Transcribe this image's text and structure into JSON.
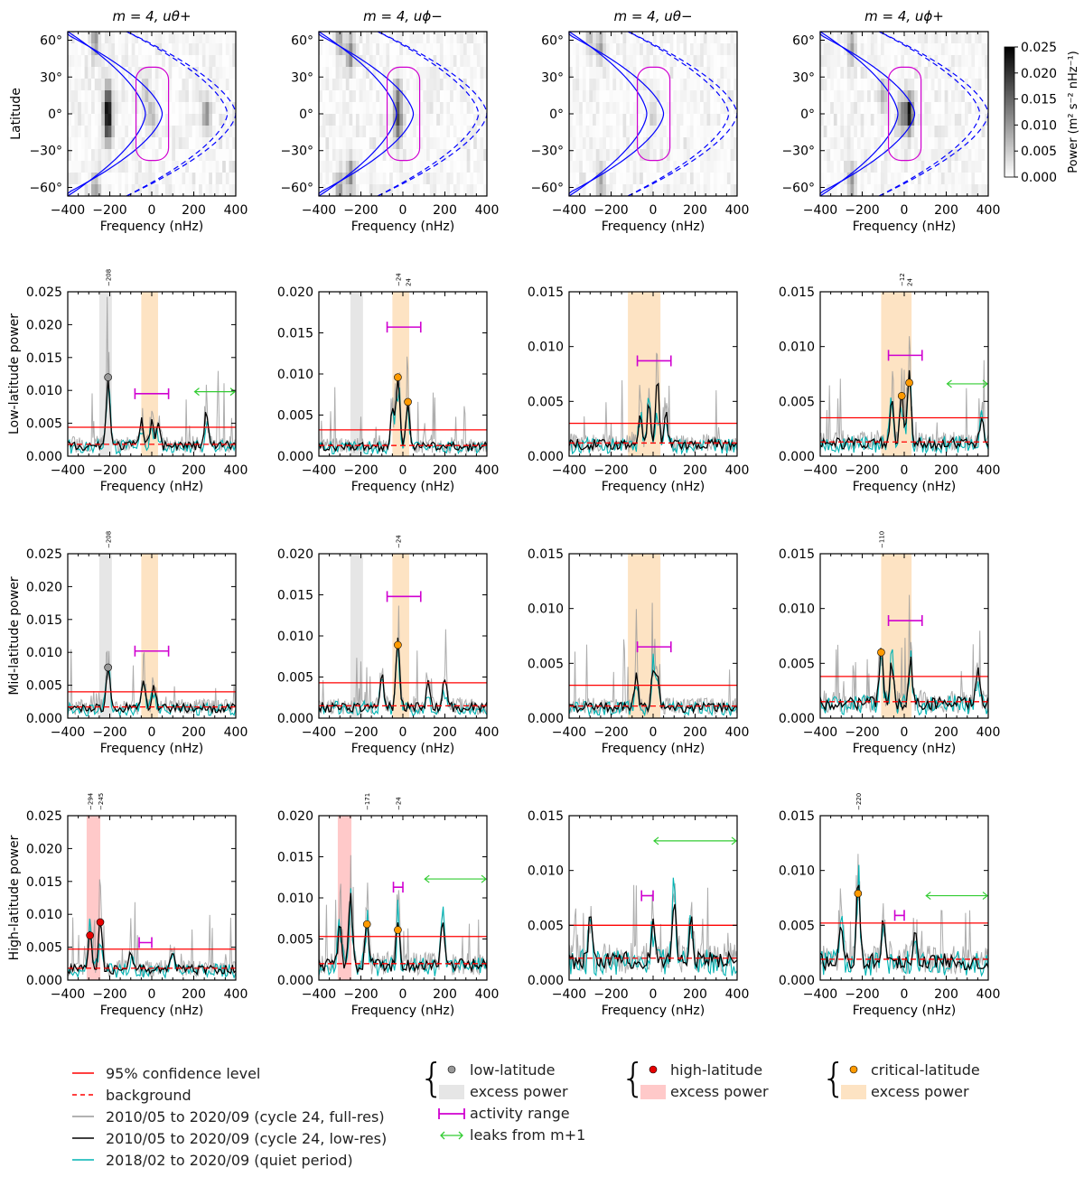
{
  "chart_data": {
    "type": "line",
    "x_label": "Frequency (nHz)",
    "xlim": [
      -400,
      400
    ],
    "x_ticks": [
      "−400",
      "−200",
      "0",
      "200",
      "400"
    ],
    "row_labels": [
      "Latitude",
      "Low-latitude power",
      "Mid-latitude power",
      "High-latitude power"
    ],
    "titles": [
      "m = 4, uθ+",
      "m = 4, uϕ−",
      "m = 4, uθ−",
      "m = 4, uϕ+"
    ],
    "lat_ticks": [
      "60°",
      "30°",
      "0°",
      "−30°",
      "−60°"
    ],
    "colorbar": {
      "label": "Power (m² s⁻² nHz⁻¹)",
      "ticks": [
        "0.025",
        "0.020",
        "0.015",
        "0.010",
        "0.005",
        "0.000"
      ],
      "range": [
        0,
        0.025
      ]
    },
    "heatmaps": [
      {
        "hot": [
          [
            -208,
            0,
            0.018
          ],
          [
            -208,
            15,
            0.01
          ],
          [
            -208,
            -15,
            0.01
          ],
          [
            260,
            0,
            0.01
          ],
          [
            -270,
            60,
            0.009
          ],
          [
            -270,
            -62,
            0.009
          ],
          [
            0,
            0,
            0.006
          ],
          [
            -30,
            20,
            0.005
          ]
        ]
      },
      {
        "hot": [
          [
            -24,
            0,
            0.01
          ],
          [
            -24,
            15,
            0.008
          ],
          [
            -24,
            -15,
            0.008
          ],
          [
            -250,
            50,
            0.01
          ],
          [
            -250,
            -50,
            0.01
          ],
          [
            -300,
            -60,
            0.008
          ],
          [
            -300,
            60,
            0.008
          ]
        ]
      },
      {
        "hot": [
          [
            -250,
            55,
            0.008
          ],
          [
            -250,
            -55,
            0.008
          ],
          [
            -300,
            62,
            0.006
          ],
          [
            0,
            0,
            0.004
          ]
        ]
      },
      {
        "hot": [
          [
            24,
            0,
            0.022
          ],
          [
            -12,
            0,
            0.01
          ],
          [
            -250,
            55,
            0.009
          ],
          [
            -250,
            -55,
            0.009
          ],
          [
            -100,
            15,
            0.006
          ]
        ]
      }
    ],
    "panels": [
      {
        "row": "low",
        "ymax": 0.025,
        "yticks": [
          "0.000",
          "0.005",
          "0.010",
          "0.015",
          "0.020",
          "0.025"
        ],
        "conf": 0.0044,
        "bg": 0.0018,
        "bands": [
          {
            "kind": "low",
            "range": [
              -250,
              -190
            ]
          },
          {
            "kind": "critical",
            "range": [
              -50,
              30
            ]
          }
        ],
        "markers": [
          {
            "kind": "low",
            "f": -208,
            "p": 0.012
          }
        ],
        "peak_labels": [
          "−208"
        ],
        "peak_freqs": [
          -208
        ],
        "activity": {
          "range": [
            -80,
            80
          ],
          "p": 0.0095
        },
        "leak": {
          "range": [
            200,
            400
          ],
          "p": 0.0098
        },
        "peaks": [
          [
            -208,
            0.011
          ],
          [
            260,
            0.0055
          ],
          [
            0,
            0.004
          ],
          [
            -50,
            0.004
          ],
          [
            30,
            0.004
          ]
        ]
      },
      {
        "row": "low",
        "ymax": 0.02,
        "yticks": [
          "0.000",
          "0.005",
          "0.010",
          "0.015",
          "0.020"
        ],
        "conf": 0.0032,
        "bg": 0.0013,
        "bands": [
          {
            "kind": "low",
            "range": [
              -250,
              -190
            ]
          },
          {
            "kind": "critical",
            "range": [
              -50,
              30
            ]
          }
        ],
        "markers": [
          {
            "kind": "critical",
            "f": -24,
            "p": 0.0096
          },
          {
            "kind": "critical",
            "f": 24,
            "p": 0.0066
          }
        ],
        "peak_labels": [
          "−24",
          "24"
        ],
        "peak_freqs": [
          -24,
          24
        ],
        "activity": {
          "range": [
            -75,
            85
          ],
          "p": 0.0157
        },
        "leak": null,
        "peaks": [
          [
            -24,
            0.009
          ],
          [
            24,
            0.006
          ],
          [
            -50,
            0.005
          ]
        ]
      },
      {
        "row": "low",
        "ymax": 0.015,
        "yticks": [
          "0.000",
          "0.005",
          "0.010",
          "0.015"
        ],
        "conf": 0.003,
        "bg": 0.0012,
        "bands": [
          {
            "kind": "critical",
            "range": [
              -120,
              35
            ]
          }
        ],
        "markers": [],
        "peak_labels": [],
        "peak_freqs": [],
        "activity": {
          "range": [
            -75,
            85
          ],
          "p": 0.0087
        },
        "leak": null,
        "peaks": [
          [
            20,
            0.006
          ],
          [
            -20,
            0.004
          ],
          [
            -60,
            0.003
          ],
          [
            60,
            0.003
          ]
        ]
      },
      {
        "row": "low",
        "ymax": 0.015,
        "yticks": [
          "0.000",
          "0.005",
          "0.010",
          "0.015"
        ],
        "conf": 0.0035,
        "bg": 0.0013,
        "bands": [
          {
            "kind": "critical",
            "range": [
              -110,
              35
            ]
          }
        ],
        "markers": [
          {
            "kind": "critical",
            "f": -12,
            "p": 0.0055
          },
          {
            "kind": "critical",
            "f": 24,
            "p": 0.0067
          }
        ],
        "peak_labels": [
          "−12",
          "24"
        ],
        "peak_freqs": [
          -12,
          24
        ],
        "activity": {
          "range": [
            -75,
            85
          ],
          "p": 0.0092
        },
        "leak": {
          "range": [
            200,
            400
          ],
          "p": 0.0066
        },
        "peaks": [
          [
            24,
            0.0065
          ],
          [
            -12,
            0.005
          ],
          [
            -60,
            0.004
          ],
          [
            370,
            0.003
          ]
        ]
      },
      {
        "row": "mid",
        "ymax": 0.025,
        "yticks": [
          "0.000",
          "0.005",
          "0.010",
          "0.015",
          "0.020",
          "0.025"
        ],
        "conf": 0.004,
        "bg": 0.0017,
        "bands": [
          {
            "kind": "low",
            "range": [
              -250,
              -190
            ]
          },
          {
            "kind": "critical",
            "range": [
              -50,
              30
            ]
          }
        ],
        "markers": [
          {
            "kind": "low",
            "f": -208,
            "p": 0.0077
          }
        ],
        "peak_labels": [
          "−208"
        ],
        "peak_freqs": [
          -208
        ],
        "activity": {
          "range": [
            -80,
            80
          ],
          "p": 0.0102
        },
        "leak": null,
        "peaks": [
          [
            -208,
            0.007
          ],
          [
            -40,
            0.005
          ],
          [
            10,
            0.004
          ]
        ]
      },
      {
        "row": "mid",
        "ymax": 0.02,
        "yticks": [
          "0.000",
          "0.005",
          "0.010",
          "0.015",
          "0.020"
        ],
        "conf": 0.0043,
        "bg": 0.0015,
        "bands": [
          {
            "kind": "low",
            "range": [
              -250,
              -190
            ]
          },
          {
            "kind": "critical",
            "range": [
              -50,
              30
            ]
          }
        ],
        "markers": [
          {
            "kind": "critical",
            "f": -24,
            "p": 0.0089
          }
        ],
        "peak_labels": [
          "−24"
        ],
        "peak_freqs": [
          -24
        ],
        "activity": {
          "range": [
            -75,
            85
          ],
          "p": 0.0148
        },
        "leak": null,
        "peaks": [
          [
            -24,
            0.0085
          ],
          [
            -100,
            0.004
          ],
          [
            200,
            0.004
          ],
          [
            120,
            0.003
          ]
        ]
      },
      {
        "row": "mid",
        "ymax": 0.015,
        "yticks": [
          "0.000",
          "0.005",
          "0.010",
          "0.015"
        ],
        "conf": 0.003,
        "bg": 0.0011,
        "bands": [
          {
            "kind": "critical",
            "range": [
              -120,
              35
            ]
          }
        ],
        "markers": [],
        "peak_labels": [],
        "peak_freqs": [],
        "activity": {
          "range": [
            -75,
            85
          ],
          "p": 0.0065
        },
        "leak": null,
        "peaks": [
          [
            -80,
            0.003
          ],
          [
            0,
            0.0035
          ],
          [
            20,
            0.003
          ]
        ]
      },
      {
        "row": "mid",
        "ymax": 0.015,
        "yticks": [
          "0.000",
          "0.005",
          "0.010",
          "0.015"
        ],
        "conf": 0.0038,
        "bg": 0.0015,
        "bands": [
          {
            "kind": "critical",
            "range": [
              -110,
              35
            ]
          }
        ],
        "markers": [
          {
            "kind": "critical",
            "f": -110,
            "p": 0.006
          }
        ],
        "peak_labels": [
          "−110"
        ],
        "peak_freqs": [
          -110
        ],
        "activity": {
          "range": [
            -75,
            85
          ],
          "p": 0.0089
        },
        "leak": null,
        "peaks": [
          [
            -110,
            0.0058
          ],
          [
            -60,
            0.004
          ],
          [
            30,
            0.004
          ],
          [
            350,
            0.003
          ]
        ]
      },
      {
        "row": "high",
        "ymax": 0.025,
        "yticks": [
          "0.000",
          "0.005",
          "0.010",
          "0.015",
          "0.020",
          "0.025"
        ],
        "conf": 0.0047,
        "bg": 0.0018,
        "bands": [
          {
            "kind": "high",
            "range": [
              -310,
              -245
            ]
          }
        ],
        "markers": [
          {
            "kind": "high",
            "f": -294,
            "p": 0.0068
          },
          {
            "kind": "high",
            "f": -245,
            "p": 0.0088
          }
        ],
        "peak_labels": [
          "−294",
          "−245"
        ],
        "peak_freqs": [
          -294,
          -245
        ],
        "activity": {
          "range": [
            -60,
            0
          ],
          "p": 0.0057
        },
        "leak": null,
        "peaks": [
          [
            -294,
            0.0065
          ],
          [
            -245,
            0.0085
          ],
          [
            -100,
            0.003
          ],
          [
            100,
            0.003
          ]
        ]
      },
      {
        "row": "high",
        "ymax": 0.02,
        "yticks": [
          "0.000",
          "0.005",
          "0.010",
          "0.015",
          "0.020"
        ],
        "conf": 0.0053,
        "bg": 0.002,
        "bands": [
          {
            "kind": "high",
            "range": [
              -310,
              -245
            ]
          }
        ],
        "markers": [
          {
            "kind": "critical",
            "f": -171,
            "p": 0.0068
          },
          {
            "kind": "critical",
            "f": -24,
            "p": 0.0061
          }
        ],
        "peak_labels": [
          "−171",
          "−24"
        ],
        "peak_freqs": [
          -171,
          -24
        ],
        "activity": {
          "range": [
            -45,
            0
          ],
          "p": 0.0113
        },
        "leak": {
          "range": [
            100,
            400
          ],
          "p": 0.0123
        },
        "peaks": [
          [
            -250,
            0.009
          ],
          [
            -171,
            0.0065
          ],
          [
            -24,
            0.006
          ],
          [
            190,
            0.006
          ],
          [
            -300,
            0.006
          ]
        ]
      },
      {
        "row": "high",
        "ymax": 0.015,
        "yticks": [
          "0.000",
          "0.005",
          "0.010",
          "0.015"
        ],
        "conf": 0.005,
        "bg": 0.002,
        "bands": [],
        "markers": [],
        "peak_labels": [],
        "peak_freqs": [],
        "activity": {
          "range": [
            -55,
            0
          ],
          "p": 0.0077
        },
        "leak": {
          "range": [
            0,
            400
          ],
          "p": 0.0127
        },
        "peaks": [
          [
            100,
            0.006
          ],
          [
            -300,
            0.004
          ],
          [
            0,
            0.004
          ],
          [
            180,
            0.004
          ]
        ]
      },
      {
        "row": "high",
        "ymax": 0.015,
        "yticks": [
          "0.000",
          "0.005",
          "0.010",
          "0.015"
        ],
        "conf": 0.0052,
        "bg": 0.0019,
        "bands": [],
        "markers": [
          {
            "kind": "critical",
            "f": -220,
            "p": 0.0079
          }
        ],
        "peak_labels": [
          "−220"
        ],
        "peak_freqs": [
          -220
        ],
        "activity": {
          "range": [
            -45,
            0
          ],
          "p": 0.0059
        },
        "leak": {
          "range": [
            100,
            400
          ],
          "p": 0.0077
        },
        "peaks": [
          [
            -220,
            0.0075
          ],
          [
            -300,
            0.004
          ],
          [
            -100,
            0.004
          ],
          [
            50,
            0.003
          ]
        ]
      }
    ],
    "colors": {
      "conf": "#ff0000",
      "full": "#999999",
      "low": "#000000",
      "quiet": "#00b3b3",
      "activity": "#d000d0",
      "leak": "#33cc33",
      "band_low": "#e6e6e6",
      "band_high": "#ffc9c9",
      "band_crit": "#fde3c3",
      "marker_low": "#999999",
      "marker_high": "#e60000",
      "marker_crit": "#ff9a00",
      "curve": "#0000ff",
      "curve_mag": "#d000d0"
    }
  },
  "legend": {
    "conf": "95% confidence level",
    "background": "background",
    "full": "2010/05 to 2020/09 (cycle 24, full-res)",
    "lowres": "2010/05 to 2020/09 (cycle 24, low-res)",
    "quiet": "2018/02 to 2020/09 (quiet period)",
    "low_lat": "low-latitude",
    "high_lat": "high-latitude",
    "crit_lat": "critical-latitude",
    "excess": "excess power",
    "activity": "activity range",
    "leaks": "leaks from m+1"
  }
}
